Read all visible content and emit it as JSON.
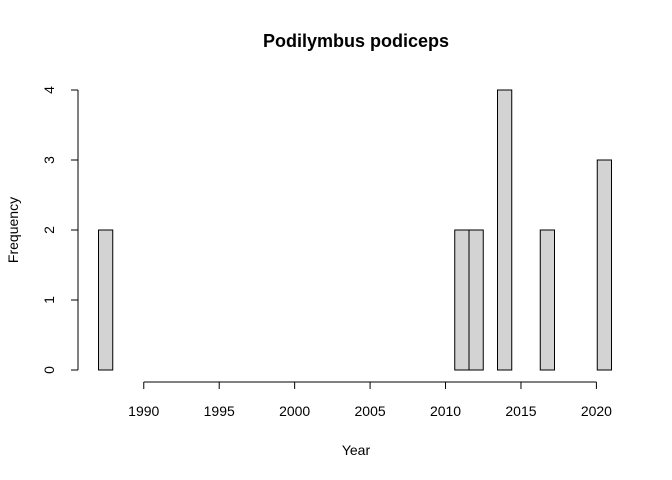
{
  "chart_data": {
    "type": "bar",
    "title": "Podilymbus podiceps",
    "xlabel": "Year",
    "ylabel": "Frequency",
    "bin_start": 1987,
    "bin_width": 1,
    "values": [
      2,
      0,
      0,
      0,
      0,
      0,
      0,
      0,
      0,
      0,
      0,
      0,
      0,
      0,
      0,
      0,
      0,
      0,
      0,
      0,
      0,
      0,
      0,
      0,
      0,
      2,
      2,
      0,
      4,
      0,
      0,
      2,
      0,
      0,
      0,
      3
    ],
    "xlim": [
      1987,
      2021
    ],
    "ylim": [
      0,
      4
    ],
    "x_ticks": [
      1990,
      1995,
      2000,
      2005,
      2010,
      2015,
      2020
    ],
    "y_ticks": [
      0,
      1,
      2,
      3,
      4
    ],
    "bar_color": "#d3d3d3",
    "grid": false,
    "legend": "none"
  }
}
